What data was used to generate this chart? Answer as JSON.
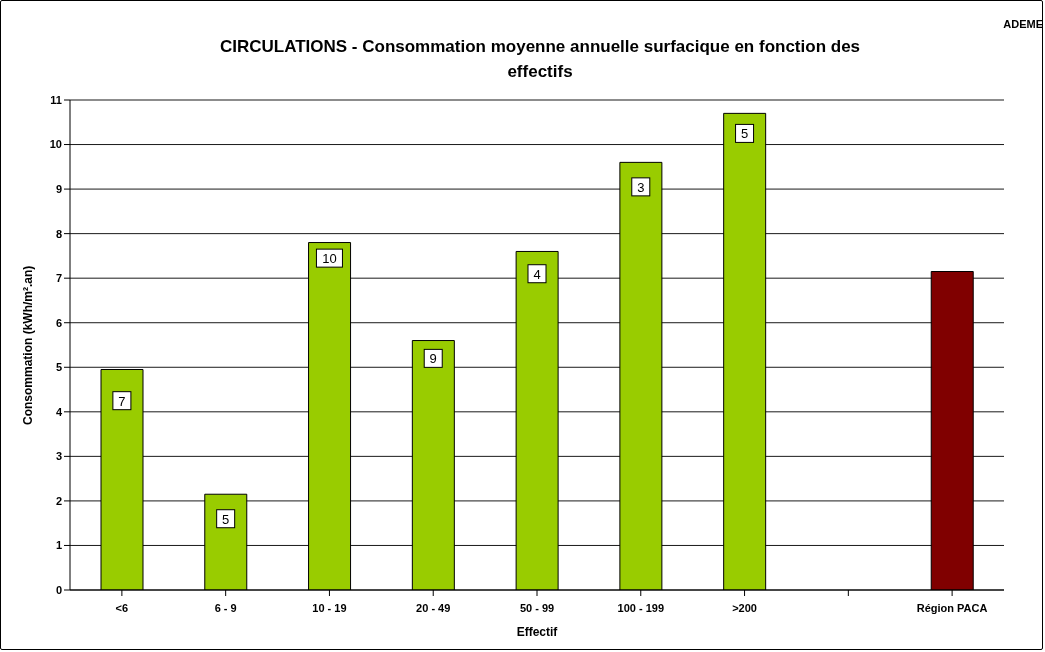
{
  "chart_data": {
    "type": "bar",
    "title": "CIRCULATIONS - Consommation moyenne annuelle surfacique en fonction des effectifs",
    "xlabel": "Effectif",
    "ylabel": "Consommation (kWh/m².an)",
    "annotations": [
      "ADEME",
      {
        "text": "7",
        "x": "<6",
        "y": 4.25
      },
      {
        "text": "5",
        "x": "6 - 9",
        "y": 1.6
      },
      {
        "text": "10",
        "x": "10 - 19",
        "y": 7.45
      },
      {
        "text": "9",
        "x": "20 - 49",
        "y": 5.2
      },
      {
        "text": "4",
        "x": "50 - 99",
        "y": 7.1
      },
      {
        "text": "3",
        "x": "100 - 199",
        "y": 9.05
      },
      {
        "text": "5",
        "x": ">200",
        "y": 10.25
      }
    ],
    "categories": [
      "<6",
      "6 - 9",
      "10 - 19",
      "20 - 49",
      "50 - 99",
      "100 - 199",
      ">200",
      null,
      "Région PACA"
    ],
    "values": [
      4.95,
      2.15,
      7.8,
      5.6,
      7.6,
      9.6,
      10.7,
      null,
      7.15
    ],
    "colors": [
      "#99cc00",
      "#99cc00",
      "#99cc00",
      "#99cc00",
      "#99cc00",
      "#99cc00",
      "#99cc00",
      "#99cc00",
      "#800000"
    ],
    "ylim": [
      0,
      11
    ],
    "yticks": [
      0,
      1,
      2,
      3,
      4,
      5,
      6,
      7,
      8,
      9,
      10,
      11
    ],
    "grid": "y"
  }
}
